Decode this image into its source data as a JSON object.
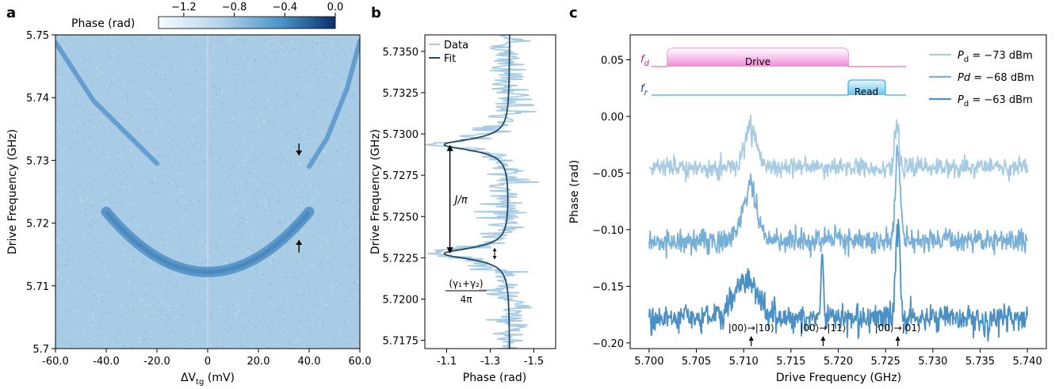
{
  "panels": {
    "a": {
      "letter": "a"
    },
    "b": {
      "letter": "b"
    },
    "c": {
      "letter": "c"
    }
  },
  "chart_data": [
    {
      "type": "heatmap",
      "panel": "a",
      "xlabel": "ΔV_tg (mV)",
      "ylabel": "Drive Frequency (GHz)",
      "xlim": [
        -60,
        60
      ],
      "ylim": [
        5.7,
        5.75
      ],
      "xticks": [
        "-60.0",
        "-40.0",
        "-20.0",
        "0",
        "20.0",
        "40.0",
        "60.0"
      ],
      "xtick_values": [
        -60,
        -40,
        -20,
        0,
        20,
        40,
        60
      ],
      "yticks": [
        "5.7",
        "5.71",
        "5.72",
        "5.73",
        "5.74",
        "5.75"
      ],
      "ytick_values": [
        5.7,
        5.71,
        5.72,
        5.73,
        5.74,
        5.75
      ],
      "colorbar": {
        "label": "Phase (rad)",
        "ticks": [
          "−1.2",
          "−0.8",
          "−0.4",
          "0.0"
        ],
        "tick_values": [
          -1.2,
          -0.8,
          -0.4,
          0.0
        ],
        "range": [
          -1.4,
          0.0
        ],
        "colors": [
          "#f7fbff",
          "#08306b"
        ]
      },
      "background_color": "#a8cbe6",
      "features": {
        "lower_branch": {
          "vertex_x": 0,
          "vertex_f": 5.7122,
          "end_x": 40,
          "end_f": 5.7218
        },
        "upper_branch_left": {
          "x": [
            -60,
            -45,
            -30,
            -20
          ],
          "f": [
            5.7488,
            5.7395,
            5.7335,
            5.7295
          ]
        },
        "upper_branch_right": {
          "x": [
            40,
            47,
            55,
            60
          ],
          "f": [
            5.729,
            5.7335,
            5.7415,
            5.749
          ]
        },
        "arrows": [
          {
            "x": 36,
            "f_from": 5.7327,
            "f_to": 5.7308
          },
          {
            "x": 36,
            "f_from": 5.7153,
            "f_to": 5.7173
          }
        ]
      }
    },
    {
      "type": "line",
      "panel": "b",
      "xlabel": "Phase (rad)",
      "ylabel": "Drive Frequency (GHz)",
      "xlim": [
        -1.0,
        -1.6
      ],
      "ylim": [
        5.717,
        5.736
      ],
      "xticks": [
        "-1.1",
        "-1.3",
        "-1.5"
      ],
      "xtick_values": [
        -1.1,
        -1.3,
        -1.5
      ],
      "yticks": [
        "5.7175",
        "5.7200",
        "5.7225",
        "5.7250",
        "5.7275",
        "5.7300",
        "5.7325",
        "5.7350"
      ],
      "ytick_values": [
        5.7175,
        5.72,
        5.7225,
        5.725,
        5.7275,
        5.73,
        5.7325,
        5.735
      ],
      "legend": [
        "Data",
        "Fit"
      ],
      "series": [
        {
          "name": "Data",
          "color": "#a6cbe3"
        },
        {
          "name": "Fit",
          "color": "#234a66"
        }
      ],
      "fit": {
        "baseline": -1.39,
        "peaks": [
          {
            "f": 5.72935,
            "depth": 0.3,
            "width": 0.00042
          },
          {
            "f": 5.72275,
            "depth": 0.3,
            "width": 0.00042
          }
        ]
      },
      "annotations": {
        "coupling": "J/π",
        "linewidth": "(γ₁+γ₂)/4π"
      }
    },
    {
      "type": "line",
      "panel": "c",
      "xlabel": "Drive Frequency (GHz)",
      "ylabel": "Phase (rad)",
      "xlim": [
        5.698,
        5.742
      ],
      "ylim": [
        -0.205,
        0.072
      ],
      "xticks": [
        "5.700",
        "5.705",
        "5.710",
        "5.715",
        "5.720",
        "5.725",
        "5.730",
        "5.735",
        "5.740"
      ],
      "xtick_values": [
        5.7,
        5.705,
        5.71,
        5.715,
        5.72,
        5.725,
        5.73,
        5.735,
        5.74
      ],
      "yticks": [
        "0.05",
        "0.00",
        "−0.05",
        "−0.10",
        "−0.15",
        "−0.20"
      ],
      "ytick_values": [
        0.05,
        0.0,
        -0.05,
        -0.1,
        -0.15,
        -0.2
      ],
      "series": [
        {
          "name": "P_d = −73 dBm",
          "sub": "d",
          "label_prefix": "P",
          "label_suffix": " = −73 dBm",
          "color": "#a6cbe3",
          "baseline": -0.045,
          "noise": 0.004,
          "peaks": [
            {
              "f": 5.7108,
              "amp": 0.035,
              "w": 0.0006
            },
            {
              "f": 5.7262,
              "amp": 0.045,
              "w": 0.0002
            }
          ]
        },
        {
          "name": "Pd = −68 dBm",
          "sub": "",
          "label_prefix": "Pd",
          "label_suffix": " = −68 dBm",
          "color": "#78afd6",
          "baseline": -0.11,
          "noise": 0.005,
          "peaks": [
            {
              "f": 5.7106,
              "amp": 0.045,
              "w": 0.0008
            },
            {
              "f": 5.7263,
              "amp": 0.078,
              "w": 0.00025
            }
          ]
        },
        {
          "name": "P_d = −63 dBm",
          "sub": "d",
          "label_prefix": "P",
          "label_suffix": " = −63 dBm",
          "color": "#4c90c3",
          "baseline": -0.178,
          "noise": 0.006,
          "peaks": [
            {
              "f": 5.7103,
              "amp": 0.035,
              "w": 0.0012
            },
            {
              "f": 5.7183,
              "amp": 0.055,
              "w": 0.00012
            },
            {
              "f": 5.7263,
              "amp": 0.08,
              "w": 0.00025
            }
          ]
        }
      ],
      "transitions": [
        {
          "label": "|00⟩→|10⟩",
          "f": 5.7108
        },
        {
          "label": "|00⟩→|11⟩",
          "f": 5.7184
        },
        {
          "label": "|00⟩→|01⟩",
          "f": 5.7263
        }
      ],
      "pulse_schematic": {
        "drive_label": "Drive",
        "read_label": "Read",
        "fd_label": "f_d",
        "fr_label": "f_r",
        "drive_color": "#e96bcb",
        "read_color": "#3fb0e0"
      }
    }
  ]
}
